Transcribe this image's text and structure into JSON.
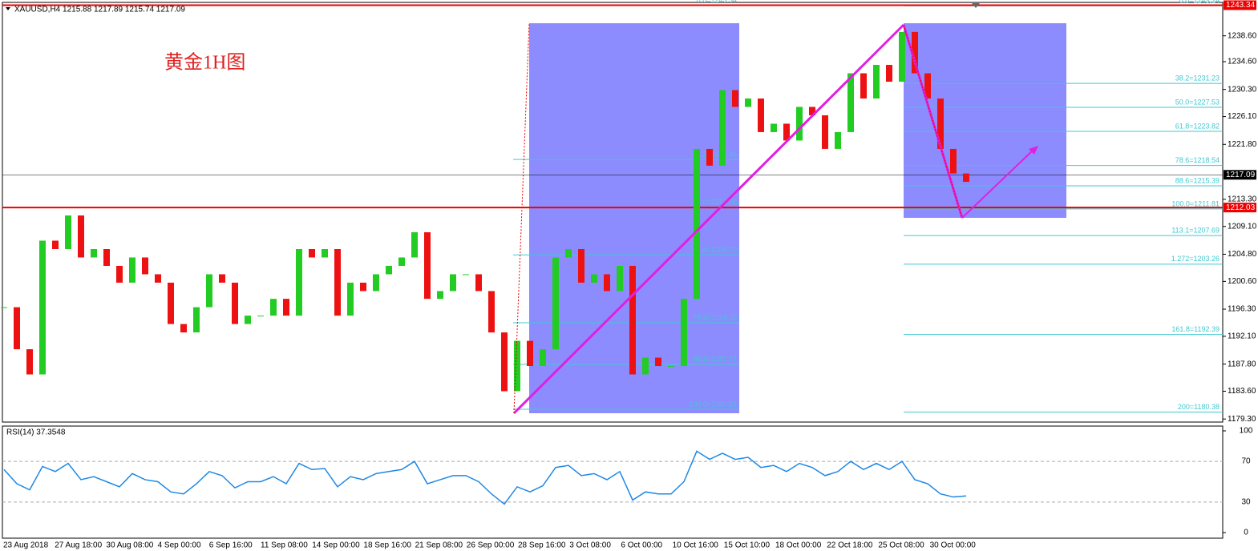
{
  "chart_data": [
    {
      "type": "candlestick",
      "title": "XAUUSD,H4  1215.88 1217.89 1215.74 1217.09",
      "annotation": "黄金1H图",
      "categories": [
        "23 Aug 2018",
        "27 Aug 18:00",
        "30 Aug 08:00",
        "4 Sep 00:00",
        "6 Sep 16:00",
        "11 Sep 08:00",
        "14 Sep 00:00",
        "18 Sep 16:00",
        "21 Sep 08:00",
        "26 Sep 00:00",
        "28 Sep 16:00",
        "3 Oct 08:00",
        "6 Oct 00:00",
        "10 Oct 16:00",
        "15 Oct 10:00",
        "18 Oct 00:00",
        "22 Oct 18:00",
        "25 Oct 08:00",
        "30 Oct 00:00"
      ],
      "close": [
        1196.6,
        1190.1,
        1186.2,
        1206.9,
        1205.6,
        1210.8,
        1204.3,
        1205.6,
        1203.0,
        1200.4,
        1204.3,
        1201.7,
        1200.4,
        1194.0,
        1192.7,
        1196.6,
        1201.7,
        1200.4,
        1194.0,
        1195.3,
        1195.3,
        1197.9,
        1195.3,
        1205.6,
        1204.3,
        1205.6,
        1195.3,
        1200.4,
        1199.1,
        1201.7,
        1203.0,
        1204.3,
        1208.2,
        1197.9,
        1199.1,
        1201.7,
        1201.7,
        1199.1,
        1192.7,
        1183.6,
        1191.4,
        1187.5,
        1190.1,
        1204.3,
        1205.6,
        1200.4,
        1201.7,
        1199.1,
        1203.0,
        1186.2,
        1188.8,
        1187.5,
        1187.5,
        1197.9,
        1221.1,
        1218.5,
        1230.2,
        1227.6,
        1228.9,
        1223.7,
        1225.0,
        1222.4,
        1227.6,
        1226.3,
        1221.1,
        1223.7,
        1232.8,
        1228.9,
        1234.1,
        1231.5,
        1239.2,
        1232.8,
        1228.9,
        1221.1,
        1217.3,
        1216.0
      ],
      "up_color": "#22cc22",
      "down_color": "#ee1111",
      "ylim": [
        1178.83,
        1243.77
      ],
      "yticks": [
        {
          "value": 1238.6,
          "label": "1238.60"
        },
        {
          "value": 1234.6,
          "label": "1234.60"
        },
        {
          "value": 1230.3,
          "label": "1230.30"
        },
        {
          "value": 1226.1,
          "label": "1226.10"
        },
        {
          "value": 1221.8,
          "label": "1221.80"
        },
        {
          "value": 1213.3,
          "label": "1213.30"
        },
        {
          "value": 1209.1,
          "label": "1209.10"
        },
        {
          "value": 1204.8,
          "label": "1204.80"
        },
        {
          "value": 1200.6,
          "label": "1200.60"
        },
        {
          "value": 1196.3,
          "label": "1196.30"
        },
        {
          "value": 1192.1,
          "label": "1192.10"
        },
        {
          "value": 1187.8,
          "label": "1187.80"
        },
        {
          "value": 1183.6,
          "label": "1183.60"
        },
        {
          "value": 1179.3,
          "label": "1179.30"
        }
      ],
      "markers": [
        {
          "value": 1243.34,
          "color": "#ee0000"
        },
        {
          "value": 1217.09,
          "color": "#000000"
        },
        {
          "value": 1212.03,
          "color": "#ee0000"
        }
      ],
      "fib_left": [
        {
          "value": 1243.34,
          "label": "0.0=1243.34"
        },
        {
          "value": 1219.46,
          "label": "38.2=1219.46"
        },
        {
          "value": 1212.08,
          "label": "50.0=1212.08"
        },
        {
          "value": 1204.7,
          "label": "61.8=1204.70"
        },
        {
          "value": 1194.2,
          "label": "78.6=1194.20"
        },
        {
          "value": 1187.77,
          "label": "88.6=1187.77"
        },
        {
          "value": 1180.82,
          "label": "100.0=1180.82"
        }
      ],
      "fib_right": [
        {
          "value": 1243.24,
          "label": "0.0=1243.24"
        },
        {
          "value": 1231.23,
          "label": "38.2=1231.23"
        },
        {
          "value": 1227.53,
          "label": "50.0=1227.53"
        },
        {
          "value": 1223.82,
          "label": "61.8=1223.82"
        },
        {
          "value": 1218.54,
          "label": "78.6=1218.54"
        },
        {
          "value": 1215.39,
          "label": "88.6=1215.39"
        },
        {
          "value": 1211.81,
          "label": "100.0=1211.81"
        },
        {
          "value": 1207.69,
          "label": "113.1=1207.69"
        },
        {
          "value": 1203.26,
          "label": "1.272=1203.26"
        },
        {
          "value": 1192.39,
          "label": "161.8=1192.39"
        },
        {
          "value": 1180.38,
          "label": "200=1180.38"
        }
      ],
      "fib_color": "#40c8d0"
    },
    {
      "type": "line",
      "title": "RSI(14) 37.3548",
      "color": "#1e88e5",
      "values": [
        62,
        48,
        42,
        65,
        60,
        68,
        52,
        55,
        50,
        45,
        58,
        52,
        50,
        40,
        38,
        48,
        60,
        56,
        44,
        50,
        50,
        55,
        48,
        68,
        62,
        63,
        45,
        55,
        52,
        58,
        60,
        62,
        70,
        48,
        52,
        56,
        56,
        50,
        38,
        28,
        45,
        40,
        46,
        64,
        66,
        56,
        58,
        52,
        60,
        32,
        40,
        38,
        38,
        50,
        80,
        72,
        78,
        72,
        74,
        64,
        66,
        60,
        68,
        64,
        56,
        60,
        70,
        62,
        68,
        62,
        70,
        52,
        48,
        38,
        35,
        36
      ],
      "ylim": [
        0,
        100
      ],
      "yticks": [
        0,
        30,
        70,
        100
      ]
    }
  ]
}
